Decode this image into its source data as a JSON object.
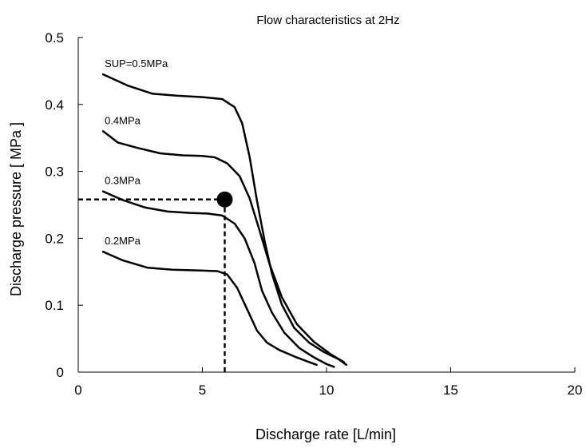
{
  "chart_data": {
    "type": "line",
    "title": "Flow characteristics at 2Hz",
    "xlabel": "Discharge rate [L/min]",
    "ylabel": "Discharge pressure [ MPa ]",
    "xlim": [
      0,
      20
    ],
    "ylim": [
      0,
      0.5
    ],
    "xticks": [
      "0",
      "5",
      "10",
      "15",
      "20"
    ],
    "yticks": [
      "0",
      "0.1",
      "0.2",
      "0.3",
      "0.4",
      "0.5"
    ],
    "grid": false,
    "series": [
      {
        "name": "SUP=0.5MPa",
        "color": "#000000",
        "points": [
          [
            1.0,
            0.445
          ],
          [
            2.0,
            0.428
          ],
          [
            3.0,
            0.416
          ],
          [
            4.0,
            0.413
          ],
          [
            5.0,
            0.411
          ],
          [
            5.8,
            0.408
          ],
          [
            6.3,
            0.396
          ],
          [
            6.6,
            0.372
          ],
          [
            6.9,
            0.322
          ],
          [
            7.2,
            0.256
          ],
          [
            7.5,
            0.197
          ],
          [
            7.8,
            0.147
          ],
          [
            8.2,
            0.101
          ],
          [
            8.7,
            0.066
          ],
          [
            9.3,
            0.044
          ],
          [
            9.9,
            0.03
          ],
          [
            10.5,
            0.019
          ],
          [
            10.8,
            0.011
          ]
        ]
      },
      {
        "name": "0.4MPa",
        "color": "#000000",
        "points": [
          [
            1.0,
            0.36
          ],
          [
            1.6,
            0.343
          ],
          [
            2.4,
            0.335
          ],
          [
            3.3,
            0.327
          ],
          [
            4.2,
            0.324
          ],
          [
            5.0,
            0.323
          ],
          [
            5.5,
            0.321
          ],
          [
            6.0,
            0.312
          ],
          [
            6.5,
            0.293
          ],
          [
            6.9,
            0.26
          ],
          [
            7.3,
            0.212
          ],
          [
            7.7,
            0.162
          ],
          [
            8.2,
            0.112
          ],
          [
            8.8,
            0.072
          ],
          [
            9.5,
            0.045
          ],
          [
            10.2,
            0.026
          ],
          [
            10.7,
            0.015
          ]
        ]
      },
      {
        "name": "0.3MPa",
        "color": "#000000",
        "points": [
          [
            1.0,
            0.27
          ],
          [
            1.8,
            0.257
          ],
          [
            2.7,
            0.246
          ],
          [
            3.6,
            0.24
          ],
          [
            4.5,
            0.238
          ],
          [
            5.2,
            0.237
          ],
          [
            5.8,
            0.234
          ],
          [
            6.3,
            0.222
          ],
          [
            6.7,
            0.2
          ],
          [
            7.1,
            0.163
          ],
          [
            7.4,
            0.122
          ],
          [
            7.8,
            0.089
          ],
          [
            8.3,
            0.059
          ],
          [
            8.9,
            0.036
          ],
          [
            9.5,
            0.022
          ],
          [
            10.0,
            0.012
          ],
          [
            10.3,
            0.008
          ]
        ]
      },
      {
        "name": "0.2MPa",
        "color": "#000000",
        "points": [
          [
            1.0,
            0.18
          ],
          [
            1.8,
            0.167
          ],
          [
            2.8,
            0.156
          ],
          [
            3.8,
            0.153
          ],
          [
            4.8,
            0.152
          ],
          [
            5.6,
            0.151
          ],
          [
            6.0,
            0.146
          ],
          [
            6.4,
            0.126
          ],
          [
            6.8,
            0.094
          ],
          [
            7.2,
            0.062
          ],
          [
            7.6,
            0.044
          ],
          [
            8.1,
            0.033
          ],
          [
            8.8,
            0.022
          ],
          [
            9.3,
            0.015
          ],
          [
            9.6,
            0.011
          ]
        ]
      }
    ],
    "annotations": {
      "operating_point": {
        "x": 5.9,
        "y": 0.258
      }
    }
  }
}
